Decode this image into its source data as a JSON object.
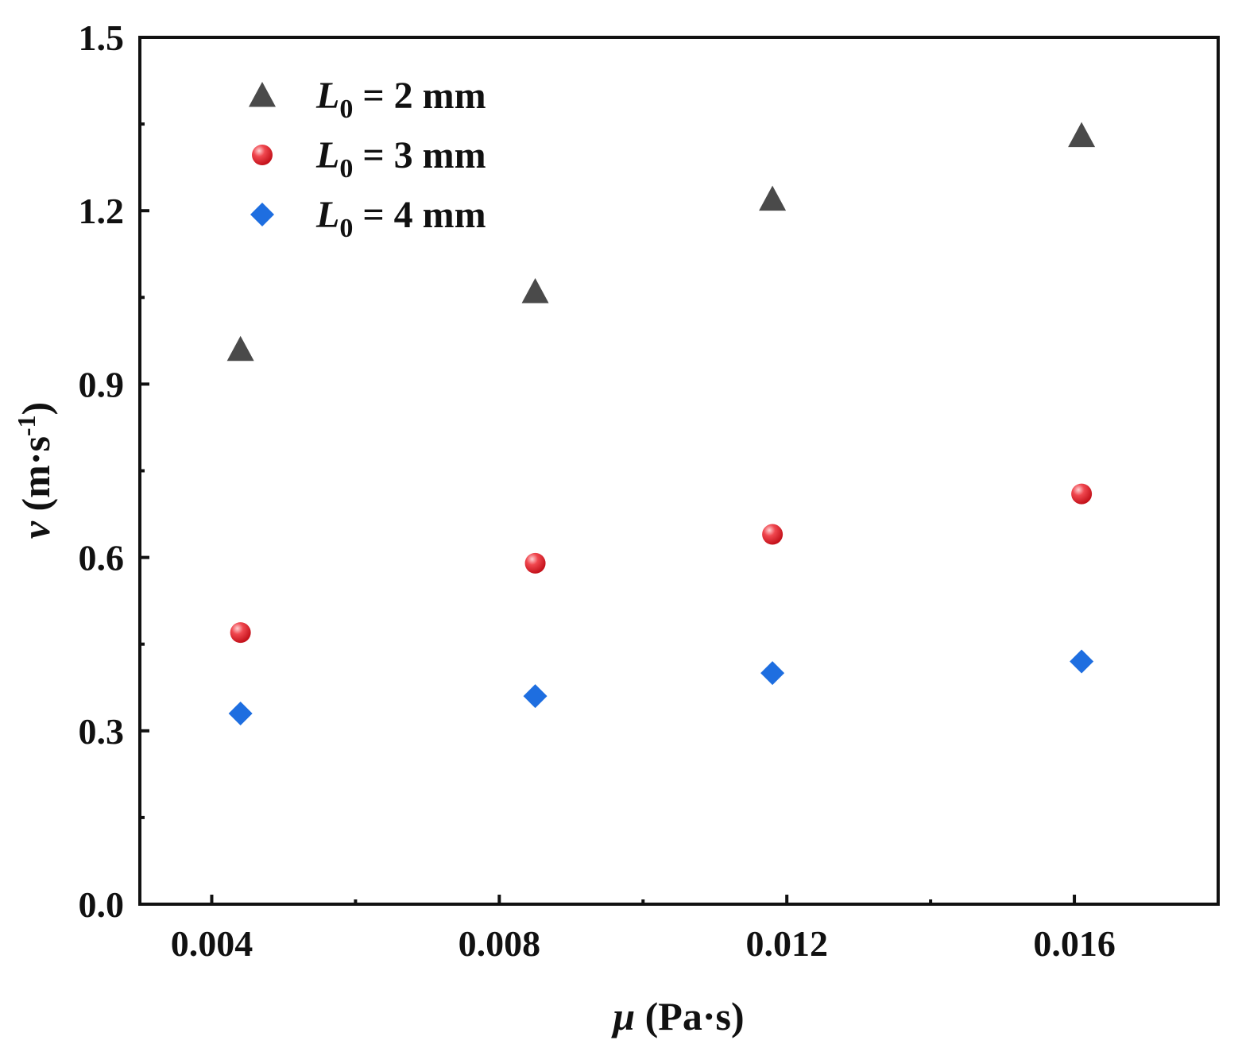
{
  "chart_data": {
    "type": "scatter",
    "title": "",
    "xlabel": {
      "symbol": "μ",
      "unit": " (Pa·s)"
    },
    "ylabel": {
      "symbol": "v",
      "unit_base": " (m·s",
      "unit_sup": "-1",
      "unit_end": ")"
    },
    "xlim": [
      0.003,
      0.018
    ],
    "ylim": [
      0.0,
      1.5
    ],
    "xticks": [
      {
        "value": 0.004,
        "label": "0.004"
      },
      {
        "value": 0.008,
        "label": "0.008"
      },
      {
        "value": 0.012,
        "label": "0.012"
      },
      {
        "value": 0.016,
        "label": "0.016"
      }
    ],
    "xminor": [
      0.006,
      0.01,
      0.014
    ],
    "yticks": [
      {
        "value": 0.0,
        "label": "0.0"
      },
      {
        "value": 0.3,
        "label": "0.3"
      },
      {
        "value": 0.6,
        "label": "0.6"
      },
      {
        "value": 0.9,
        "label": "0.9"
      },
      {
        "value": 1.2,
        "label": "1.2"
      },
      {
        "value": 1.5,
        "label": "1.5"
      }
    ],
    "yminor": [
      0.15,
      0.45,
      0.75,
      1.05,
      1.35
    ],
    "grid": false,
    "legend_position": "top-left",
    "x": [
      0.0044,
      0.0085,
      0.0118,
      0.0161
    ],
    "series": [
      {
        "name": "L0 = 2 mm",
        "legend": {
          "sym": "L",
          "sub": "0",
          "rest": " = 2 mm"
        },
        "marker": "triangle",
        "color": "#4a4a4a",
        "values": [
          0.96,
          1.06,
          1.22,
          1.33
        ]
      },
      {
        "name": "L0 = 3 mm",
        "legend": {
          "sym": "L",
          "sub": "0",
          "rest": " = 3 mm"
        },
        "marker": "circle",
        "color": "#e8232d",
        "values": [
          0.47,
          0.59,
          0.64,
          0.71
        ]
      },
      {
        "name": "L0 = 4 mm",
        "legend": {
          "sym": "L",
          "sub": "0",
          "rest": " = 4 mm"
        },
        "marker": "diamond",
        "color": "#1e6ee0",
        "values": [
          0.33,
          0.36,
          0.4,
          0.42
        ]
      }
    ]
  }
}
